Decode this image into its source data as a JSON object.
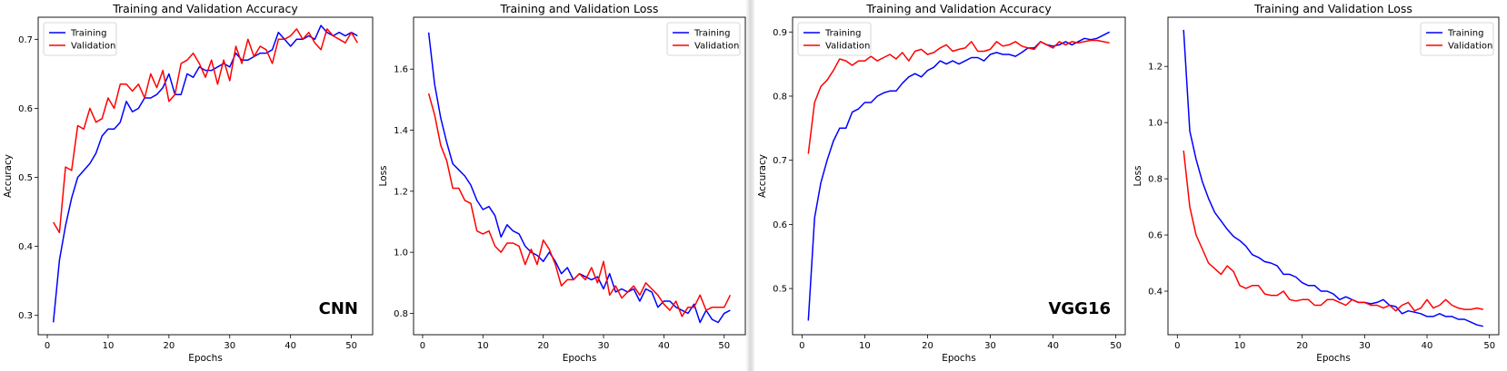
{
  "colors": {
    "training": "#0000ff",
    "validation": "#ff0000"
  },
  "chart_data": [
    {
      "type": "line",
      "title": "Training and Validation Accuracy",
      "xlabel": "Epochs",
      "ylabel": "Accuracy",
      "watermark": "CNN",
      "legend_position": "top-left",
      "xlim": [
        -1.5,
        53.5
      ],
      "ylim": [
        0.272,
        0.732
      ],
      "xticks": [
        0,
        10,
        20,
        30,
        40,
        50
      ],
      "yticks": [
        0.3,
        0.4,
        0.5,
        0.6,
        0.7
      ],
      "ytick_labels": [
        "0.3",
        "0.4",
        "0.5",
        "0.6",
        "0.7"
      ],
      "x": [
        1,
        2,
        3,
        4,
        5,
        6,
        7,
        8,
        9,
        10,
        11,
        12,
        13,
        14,
        15,
        16,
        17,
        18,
        19,
        20,
        21,
        22,
        23,
        24,
        25,
        26,
        27,
        28,
        29,
        30,
        31,
        32,
        33,
        34,
        35,
        36,
        37,
        38,
        39,
        40,
        41,
        42,
        43,
        44,
        45,
        46,
        47,
        48,
        49,
        50,
        51
      ],
      "series": [
        {
          "name": "Training",
          "color": "#0000ff",
          "values": [
            0.29,
            0.38,
            0.43,
            0.47,
            0.5,
            0.51,
            0.52,
            0.535,
            0.56,
            0.57,
            0.57,
            0.58,
            0.61,
            0.595,
            0.6,
            0.615,
            0.615,
            0.62,
            0.63,
            0.65,
            0.62,
            0.62,
            0.65,
            0.645,
            0.66,
            0.655,
            0.655,
            0.66,
            0.665,
            0.66,
            0.68,
            0.67,
            0.67,
            0.675,
            0.68,
            0.68,
            0.685,
            0.71,
            0.7,
            0.69,
            0.7,
            0.7,
            0.705,
            0.7,
            0.72,
            0.71,
            0.705,
            0.71,
            0.705,
            0.71,
            0.705
          ]
        },
        {
          "name": "Validation",
          "color": "#ff0000",
          "values": [
            0.435,
            0.42,
            0.515,
            0.51,
            0.575,
            0.57,
            0.6,
            0.58,
            0.585,
            0.615,
            0.6,
            0.635,
            0.635,
            0.625,
            0.635,
            0.615,
            0.65,
            0.63,
            0.655,
            0.61,
            0.62,
            0.665,
            0.67,
            0.68,
            0.665,
            0.645,
            0.67,
            0.635,
            0.67,
            0.64,
            0.69,
            0.665,
            0.7,
            0.675,
            0.69,
            0.685,
            0.665,
            0.7,
            0.7,
            0.705,
            0.715,
            0.7,
            0.71,
            0.695,
            0.685,
            0.715,
            0.705,
            0.7,
            0.695,
            0.71,
            0.695
          ]
        }
      ]
    },
    {
      "type": "line",
      "title": "Training and Validation Loss",
      "xlabel": "Epochs",
      "ylabel": "Loss",
      "legend_position": "top-right",
      "xlim": [
        -1.5,
        53.5
      ],
      "ylim": [
        0.73,
        1.77
      ],
      "xticks": [
        0,
        10,
        20,
        30,
        40,
        50
      ],
      "yticks": [
        0.8,
        1.0,
        1.2,
        1.4,
        1.6
      ],
      "ytick_labels": [
        "0.8",
        "1.0",
        "1.2",
        "1.4",
        "1.6"
      ],
      "x": [
        1,
        2,
        3,
        4,
        5,
        6,
        7,
        8,
        9,
        10,
        11,
        12,
        13,
        14,
        15,
        16,
        17,
        18,
        19,
        20,
        21,
        22,
        23,
        24,
        25,
        26,
        27,
        28,
        29,
        30,
        31,
        32,
        33,
        34,
        35,
        36,
        37,
        38,
        39,
        40,
        41,
        42,
        43,
        44,
        45,
        46,
        47,
        48,
        49,
        50,
        51
      ],
      "series": [
        {
          "name": "Training",
          "color": "#0000ff",
          "values": [
            1.72,
            1.55,
            1.44,
            1.36,
            1.29,
            1.27,
            1.25,
            1.22,
            1.17,
            1.14,
            1.15,
            1.12,
            1.05,
            1.09,
            1.07,
            1.06,
            1.02,
            1.0,
            0.99,
            0.97,
            1.0,
            0.97,
            0.93,
            0.95,
            0.91,
            0.93,
            0.92,
            0.91,
            0.92,
            0.88,
            0.93,
            0.87,
            0.88,
            0.87,
            0.88,
            0.84,
            0.88,
            0.87,
            0.82,
            0.84,
            0.84,
            0.82,
            0.81,
            0.8,
            0.83,
            0.77,
            0.81,
            0.78,
            0.77,
            0.8,
            0.81
          ]
        },
        {
          "name": "Validation",
          "color": "#ff0000",
          "values": [
            1.52,
            1.45,
            1.35,
            1.3,
            1.21,
            1.21,
            1.17,
            1.16,
            1.07,
            1.06,
            1.07,
            1.02,
            1.0,
            1.03,
            1.03,
            1.02,
            0.96,
            1.01,
            0.96,
            1.04,
            1.01,
            0.96,
            0.89,
            0.91,
            0.91,
            0.93,
            0.91,
            0.95,
            0.9,
            0.97,
            0.86,
            0.89,
            0.85,
            0.87,
            0.89,
            0.86,
            0.9,
            0.88,
            0.86,
            0.83,
            0.81,
            0.84,
            0.79,
            0.82,
            0.82,
            0.86,
            0.81,
            0.82,
            0.82,
            0.82,
            0.86
          ]
        }
      ]
    },
    {
      "type": "line",
      "title": "Training and Validation Accuracy",
      "xlabel": "Epochs",
      "ylabel": "Accuracy",
      "watermark": "VGG16",
      "legend_position": "top-left",
      "xlim": [
        -1.5,
        51.5
      ],
      "ylim": [
        0.428,
        0.923
      ],
      "xticks": [
        0,
        10,
        20,
        30,
        40,
        50
      ],
      "yticks": [
        0.5,
        0.6,
        0.7,
        0.8,
        0.9
      ],
      "ytick_labels": [
        "0.5",
        "0.6",
        "0.7",
        "0.8",
        "0.9"
      ],
      "x": [
        1,
        2,
        3,
        4,
        5,
        6,
        7,
        8,
        9,
        10,
        11,
        12,
        13,
        14,
        15,
        16,
        17,
        18,
        19,
        20,
        21,
        22,
        23,
        24,
        25,
        26,
        27,
        28,
        29,
        30,
        31,
        32,
        33,
        34,
        35,
        36,
        37,
        38,
        39,
        40,
        41,
        42,
        43,
        44,
        45,
        46,
        47,
        48,
        49
      ],
      "series": [
        {
          "name": "Training",
          "color": "#0000ff",
          "values": [
            0.45,
            0.61,
            0.665,
            0.7,
            0.73,
            0.75,
            0.75,
            0.775,
            0.78,
            0.79,
            0.79,
            0.8,
            0.805,
            0.808,
            0.808,
            0.82,
            0.83,
            0.835,
            0.83,
            0.84,
            0.845,
            0.855,
            0.85,
            0.855,
            0.85,
            0.855,
            0.86,
            0.86,
            0.855,
            0.865,
            0.868,
            0.865,
            0.865,
            0.862,
            0.868,
            0.875,
            0.875,
            0.885,
            0.88,
            0.878,
            0.88,
            0.885,
            0.88,
            0.885,
            0.89,
            0.888,
            0.89,
            0.895,
            0.9
          ]
        },
        {
          "name": "Validation",
          "color": "#ff0000",
          "values": [
            0.71,
            0.79,
            0.815,
            0.825,
            0.84,
            0.858,
            0.855,
            0.848,
            0.855,
            0.855,
            0.862,
            0.855,
            0.86,
            0.865,
            0.858,
            0.868,
            0.855,
            0.87,
            0.873,
            0.865,
            0.868,
            0.875,
            0.88,
            0.87,
            0.873,
            0.875,
            0.885,
            0.87,
            0.87,
            0.873,
            0.885,
            0.878,
            0.88,
            0.885,
            0.878,
            0.875,
            0.873,
            0.885,
            0.88,
            0.875,
            0.885,
            0.88,
            0.885,
            0.883,
            0.885,
            0.887,
            0.887,
            0.885,
            0.883
          ]
        }
      ]
    },
    {
      "type": "line",
      "title": "Training and Validation Loss",
      "xlabel": "Epochs",
      "ylabel": "Loss",
      "legend_position": "top-right",
      "xlim": [
        -1.5,
        51.5
      ],
      "ylim": [
        0.245,
        1.375
      ],
      "xticks": [
        0,
        10,
        20,
        30,
        40,
        50
      ],
      "yticks": [
        0.4,
        0.6,
        0.8,
        1.0,
        1.2
      ],
      "ytick_labels": [
        "0.4",
        "0.6",
        "0.8",
        "1.0",
        "1.2"
      ],
      "x": [
        1,
        2,
        3,
        4,
        5,
        6,
        7,
        8,
        9,
        10,
        11,
        12,
        13,
        14,
        15,
        16,
        17,
        18,
        19,
        20,
        21,
        22,
        23,
        24,
        25,
        26,
        27,
        28,
        29,
        30,
        31,
        32,
        33,
        34,
        35,
        36,
        37,
        38,
        39,
        40,
        41,
        42,
        43,
        44,
        45,
        46,
        47,
        48,
        49
      ],
      "series": [
        {
          "name": "Training",
          "color": "#0000ff",
          "values": [
            1.33,
            0.97,
            0.87,
            0.79,
            0.73,
            0.68,
            0.65,
            0.62,
            0.595,
            0.58,
            0.56,
            0.53,
            0.52,
            0.505,
            0.5,
            0.49,
            0.46,
            0.46,
            0.45,
            0.43,
            0.42,
            0.42,
            0.4,
            0.4,
            0.39,
            0.37,
            0.38,
            0.37,
            0.36,
            0.36,
            0.355,
            0.36,
            0.37,
            0.35,
            0.345,
            0.32,
            0.33,
            0.325,
            0.32,
            0.31,
            0.31,
            0.32,
            0.31,
            0.31,
            0.3,
            0.3,
            0.29,
            0.28,
            0.275
          ]
        },
        {
          "name": "Validation",
          "color": "#ff0000",
          "values": [
            0.9,
            0.7,
            0.6,
            0.55,
            0.5,
            0.48,
            0.46,
            0.49,
            0.47,
            0.42,
            0.41,
            0.42,
            0.42,
            0.39,
            0.385,
            0.385,
            0.4,
            0.37,
            0.365,
            0.37,
            0.37,
            0.35,
            0.35,
            0.37,
            0.37,
            0.36,
            0.35,
            0.37,
            0.36,
            0.36,
            0.35,
            0.35,
            0.34,
            0.35,
            0.33,
            0.35,
            0.36,
            0.33,
            0.34,
            0.37,
            0.34,
            0.35,
            0.37,
            0.35,
            0.34,
            0.335,
            0.335,
            0.34,
            0.335
          ]
        }
      ]
    }
  ]
}
